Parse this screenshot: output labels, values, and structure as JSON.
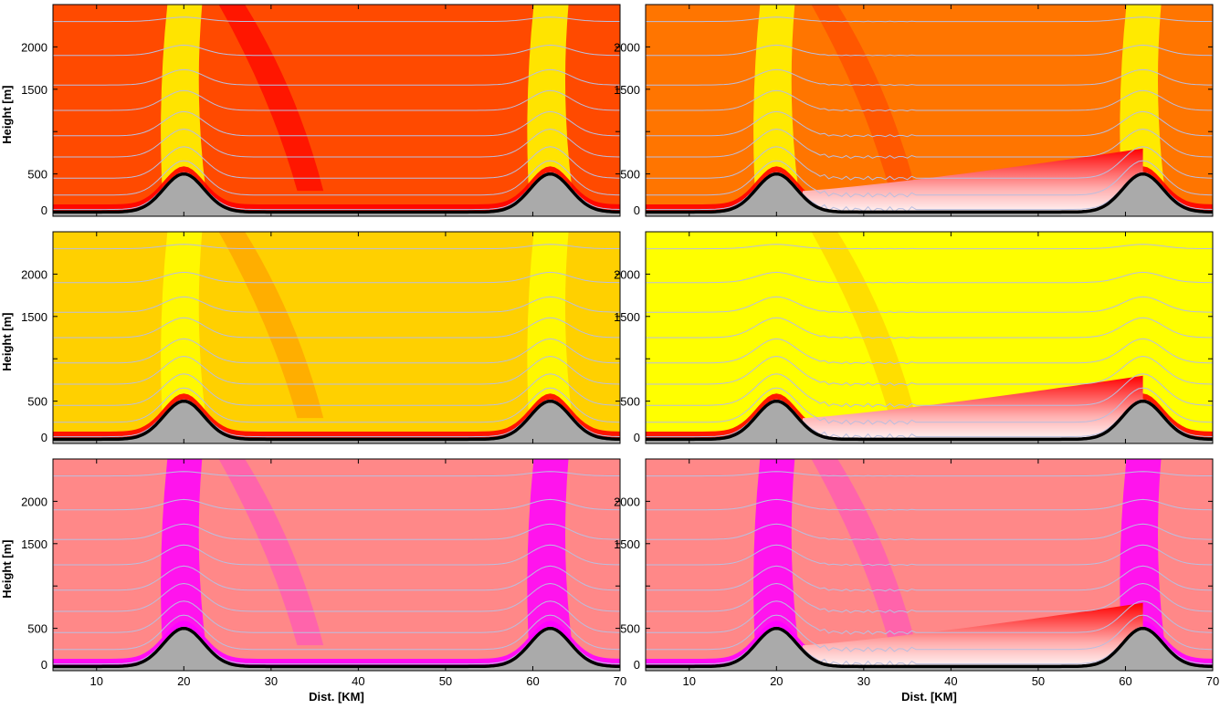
{
  "figure": {
    "xlabel": "Dist. [KM]",
    "ylabel": "Height [m]"
  },
  "colors": {
    "terrain_fill": "#aaaaaa",
    "terrain_line": "#000000",
    "isoline": "#b9bedf",
    "palette_red_yellow": [
      "#ff0000",
      "#ff4a00",
      "#ff7500",
      "#ffa000",
      "#ffd000",
      "#ffff00"
    ],
    "palette_pink_yellow": [
      "#ff00ff",
      "#ff55bb",
      "#ff8888",
      "#ffa060",
      "#ffd040",
      "#ffff00"
    ]
  },
  "chart_data": [
    {
      "type": "heatmap",
      "panel": "row1-left",
      "xlim": [
        5,
        70
      ],
      "ylim": [
        0,
        2500
      ],
      "xticks": [
        10,
        20,
        30,
        40,
        50,
        60,
        70
      ],
      "yticks": [
        0,
        500,
        1000,
        1500,
        2000
      ],
      "ytick_labels": [
        "0",
        "500",
        "",
        "1500",
        "2000"
      ],
      "show_xticks": false,
      "show_ylabel": true,
      "terrain": {
        "base": 50,
        "peaks": [
          {
            "x": 20,
            "height": 500,
            "width": 2.3
          },
          {
            "x": 62,
            "height": 500,
            "width": 2.3
          }
        ]
      },
      "background_level": 1,
      "isoline_heights": [
        80,
        250,
        450,
        700,
        950,
        1250,
        1550,
        1900,
        2300
      ],
      "cold_pool": null,
      "waves": false
    },
    {
      "type": "heatmap",
      "panel": "row1-right",
      "xlim": [
        5,
        70
      ],
      "ylim": [
        0,
        2500
      ],
      "xticks": [
        10,
        20,
        30,
        40,
        50,
        60,
        70
      ],
      "yticks": [
        0,
        500,
        1000,
        1500,
        2000
      ],
      "ytick_labels": [
        "0",
        "500",
        "",
        "1500",
        "2000"
      ],
      "show_xticks": false,
      "show_ylabel": false,
      "terrain": {
        "base": 50,
        "peaks": [
          {
            "x": 20,
            "height": 500,
            "width": 2.3
          },
          {
            "x": 62,
            "height": 500,
            "width": 2.3
          }
        ]
      },
      "background_level": 2,
      "isoline_heights": [
        80,
        250,
        450,
        700,
        950,
        1250,
        1550,
        1900,
        2300
      ],
      "cold_pool": {
        "x_start": 23,
        "x_end": 62,
        "top_start": 300,
        "top_end": 800
      },
      "waves": true
    },
    {
      "type": "heatmap",
      "panel": "row2-left",
      "xlim": [
        5,
        70
      ],
      "ylim": [
        0,
        2500
      ],
      "xticks": [
        10,
        20,
        30,
        40,
        50,
        60,
        70
      ],
      "yticks": [
        0,
        500,
        1000,
        1500,
        2000
      ],
      "ytick_labels": [
        "0",
        "500",
        "",
        "1500",
        "2000"
      ],
      "show_xticks": false,
      "show_ylabel": true,
      "terrain": {
        "base": 50,
        "peaks": [
          {
            "x": 20,
            "height": 500,
            "width": 2.3
          },
          {
            "x": 62,
            "height": 500,
            "width": 2.3
          }
        ]
      },
      "background_level": 4,
      "isoline_heights": [
        80,
        250,
        450,
        700,
        950,
        1250,
        1550,
        1900,
        2300
      ],
      "cold_pool": null,
      "waves": false
    },
    {
      "type": "heatmap",
      "panel": "row2-right",
      "xlim": [
        5,
        70
      ],
      "ylim": [
        0,
        2500
      ],
      "xticks": [
        10,
        20,
        30,
        40,
        50,
        60,
        70
      ],
      "yticks": [
        0,
        500,
        1000,
        1500,
        2000
      ],
      "ytick_labels": [
        "0",
        "500",
        "",
        "1500",
        "2000"
      ],
      "show_xticks": false,
      "show_ylabel": false,
      "terrain": {
        "base": 50,
        "peaks": [
          {
            "x": 20,
            "height": 500,
            "width": 2.3
          },
          {
            "x": 62,
            "height": 500,
            "width": 2.3
          }
        ]
      },
      "background_level": 5,
      "isoline_heights": [
        80,
        250,
        450,
        700,
        950,
        1250,
        1550,
        1900,
        2300
      ],
      "cold_pool": {
        "x_start": 23,
        "x_end": 62,
        "top_start": 300,
        "top_end": 800
      },
      "waves": true
    },
    {
      "type": "heatmap",
      "panel": "row3-left",
      "xlim": [
        5,
        70
      ],
      "ylim": [
        0,
        2500
      ],
      "xticks": [
        10,
        20,
        30,
        40,
        50,
        60,
        70
      ],
      "yticks": [
        0,
        500,
        1000,
        1500,
        2000
      ],
      "ytick_labels": [
        "0",
        "500",
        "",
        "1500",
        "2000"
      ],
      "show_xticks": true,
      "show_ylabel": true,
      "terrain": {
        "base": 50,
        "peaks": [
          {
            "x": 20,
            "height": 500,
            "width": 2.3
          },
          {
            "x": 62,
            "height": 500,
            "width": 2.3
          }
        ]
      },
      "background_level": 2,
      "isoline_heights": [
        80,
        250,
        450,
        700,
        950,
        1250,
        1550,
        1900,
        2300
      ],
      "cold_pool": null,
      "waves": false
    },
    {
      "type": "heatmap",
      "panel": "row3-right",
      "xlim": [
        5,
        70
      ],
      "ylim": [
        0,
        2500
      ],
      "xticks": [
        10,
        20,
        30,
        40,
        50,
        60,
        70
      ],
      "yticks": [
        0,
        500,
        1000,
        1500,
        2000
      ],
      "ytick_labels": [
        "0",
        "500",
        "",
        "1500",
        "2000"
      ],
      "show_xticks": true,
      "show_ylabel": false,
      "terrain": {
        "base": 50,
        "peaks": [
          {
            "x": 20,
            "height": 500,
            "width": 2.3
          },
          {
            "x": 62,
            "height": 500,
            "width": 2.3
          }
        ]
      },
      "background_level": 2,
      "isoline_heights": [
        80,
        250,
        450,
        700,
        950,
        1250,
        1550,
        1900,
        2300
      ],
      "cold_pool": {
        "x_start": 23,
        "x_end": 62,
        "top_start": 300,
        "top_end": 800
      },
      "waves": true
    }
  ]
}
